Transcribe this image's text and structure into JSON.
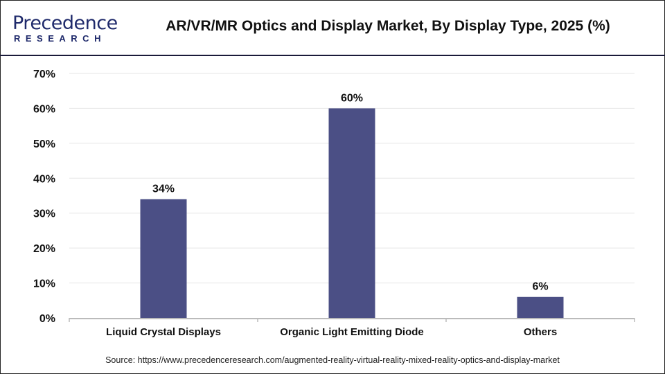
{
  "header": {
    "logo_text": "Precedence",
    "logo_subtext": "RESEARCH",
    "title": "AR/VR/MR Optics and Display Market, By Display Type, 2025 (%)"
  },
  "chart_data": {
    "type": "bar",
    "title": "AR/VR/MR Optics and Display Market, By Display Type, 2025 (%)",
    "categories": [
      "Liquid Crystal Displays",
      "Organic Light Emitting Diode",
      "Others"
    ],
    "values": [
      34,
      60,
      6
    ],
    "data_labels": [
      "34%",
      "60%",
      "6%"
    ],
    "xlabel": "",
    "ylabel": "",
    "ylim": [
      0,
      70
    ],
    "yticks": [
      0,
      10,
      20,
      30,
      40,
      50,
      60,
      70
    ],
    "ytick_labels": [
      "0%",
      "10%",
      "20%",
      "30%",
      "40%",
      "50%",
      "60%",
      "70%"
    ],
    "grid": true,
    "bar_color": "#4b4f85"
  },
  "footer": {
    "source": "Source: https://www.precedenceresearch.com/augmented-reality-virtual-reality-mixed-reality-optics-and-display-market"
  }
}
